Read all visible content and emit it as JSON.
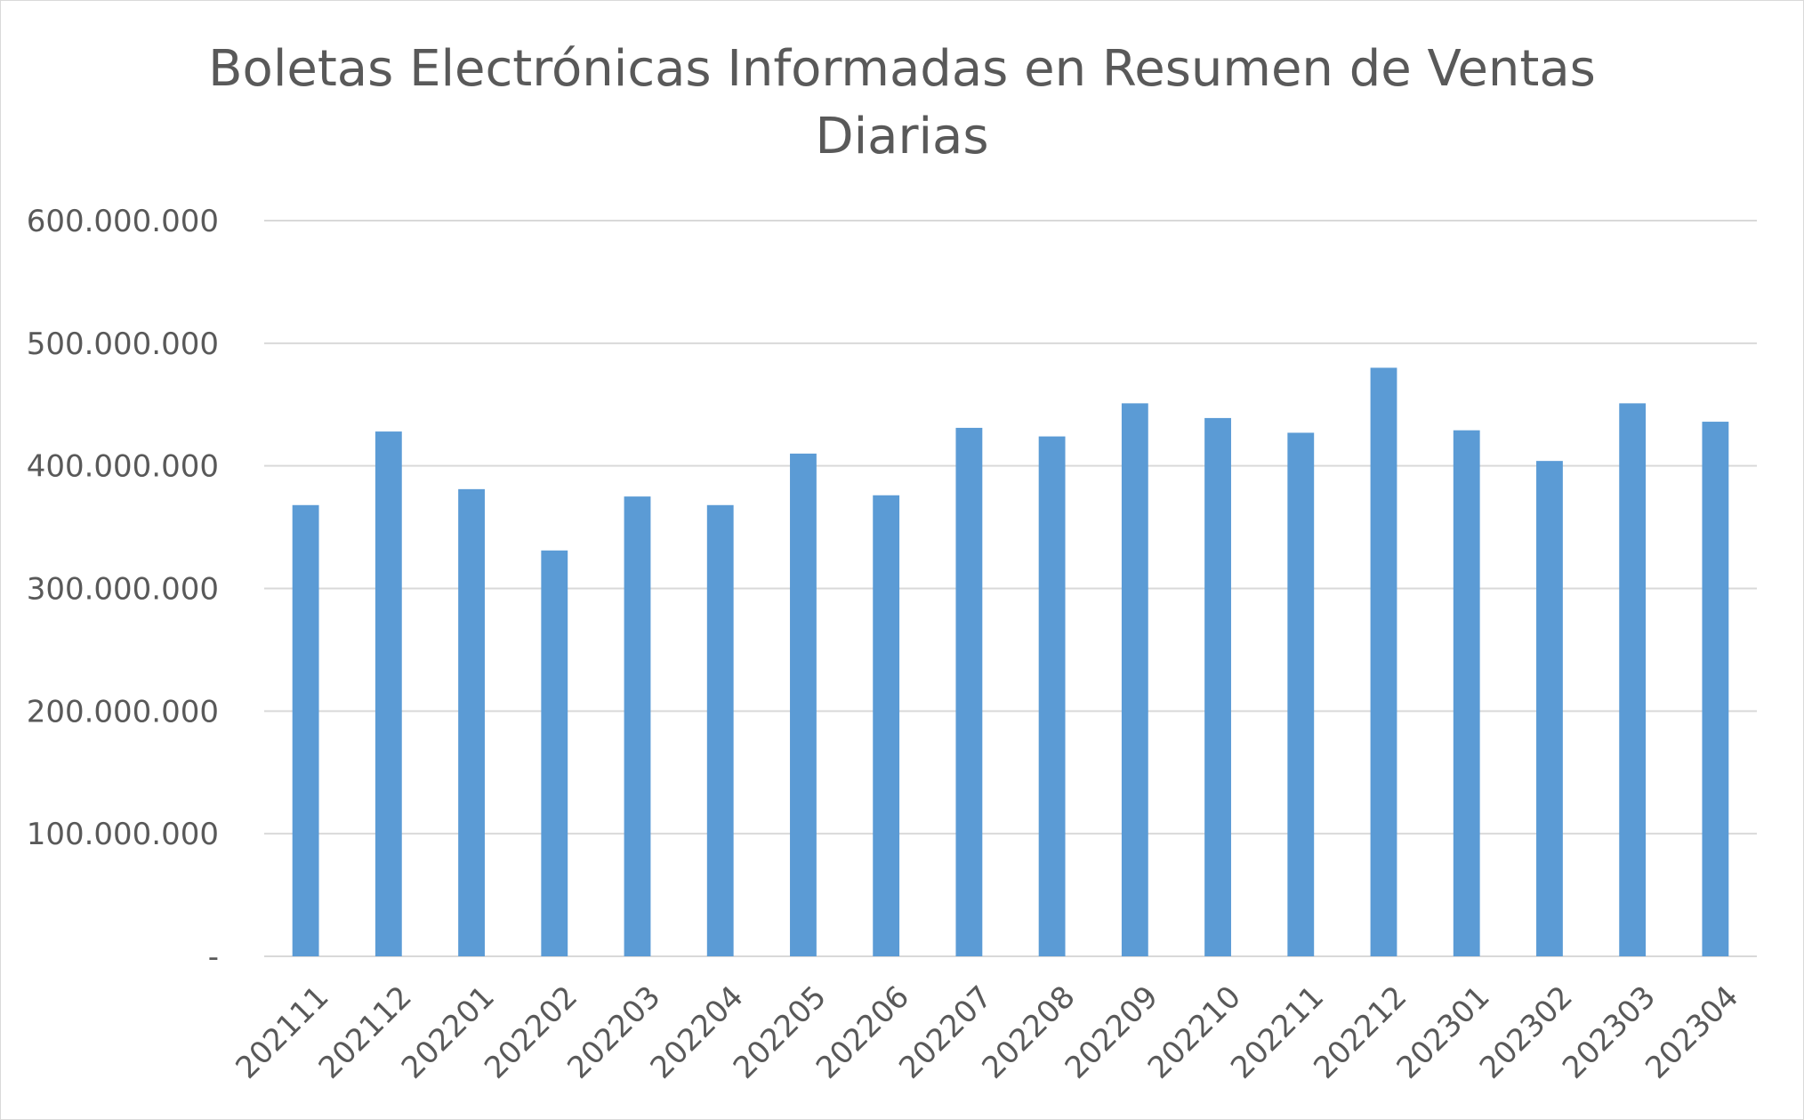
{
  "chart_data": {
    "type": "bar",
    "title_lines": [
      "Boletas Electrónicas Informadas en Resumen de Ventas",
      "Diarias"
    ],
    "xlabel": "",
    "ylabel": "",
    "categories": [
      "202111",
      "202112",
      "202201",
      "202202",
      "202203",
      "202204",
      "202205",
      "202206",
      "202207",
      "202208",
      "202209",
      "202210",
      "202211",
      "202212",
      "202301",
      "202302",
      "202303",
      "202304"
    ],
    "values": [
      368000000,
      428000000,
      381000000,
      331000000,
      375000000,
      368000000,
      410000000,
      376000000,
      431000000,
      424000000,
      451000000,
      439000000,
      427000000,
      480000000,
      429000000,
      404000000,
      451000000,
      436000000
    ],
    "ylim": [
      0,
      600000000
    ],
    "y_ticks": [
      {
        "value": 0,
        "label": "-"
      },
      {
        "value": 100000000,
        "label": "100.000.000"
      },
      {
        "value": 200000000,
        "label": "200.000.000"
      },
      {
        "value": 300000000,
        "label": "300.000.000"
      },
      {
        "value": 400000000,
        "label": "400.000.000"
      },
      {
        "value": 500000000,
        "label": "500.000.000"
      },
      {
        "value": 600000000,
        "label": "600.000.000"
      }
    ],
    "grid": true,
    "legend": "none",
    "bar_color": "#5b9bd5",
    "grid_color": "#d9d9d9",
    "text_color": "#595959"
  }
}
